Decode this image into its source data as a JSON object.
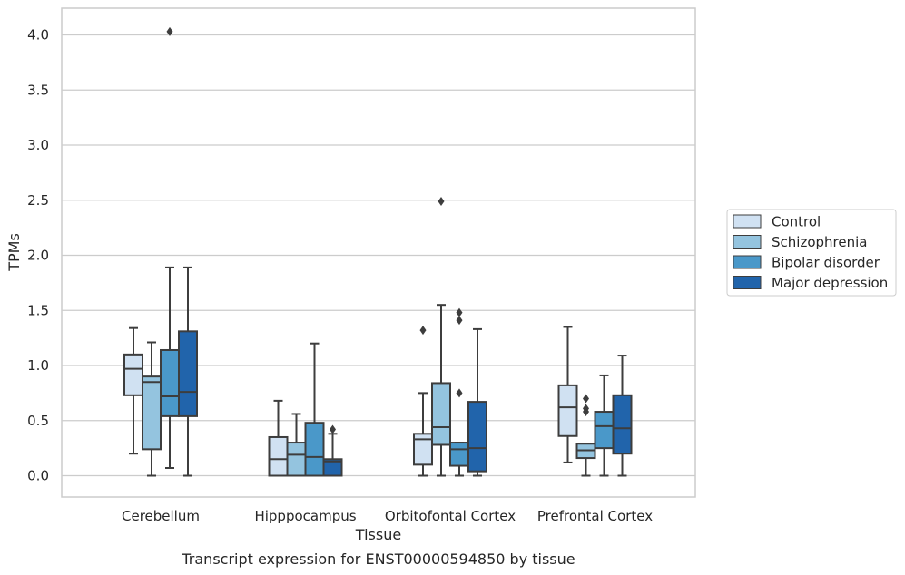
{
  "chart_data": {
    "type": "boxplot",
    "title": "",
    "caption": "Transcript expression for ENST00000594850 by tissue",
    "xlabel": "Tissue",
    "ylabel": "TPMs",
    "ylim": [
      -0.2,
      4.25
    ],
    "yticks": [
      0.0,
      0.5,
      1.0,
      1.5,
      2.0,
      2.5,
      3.0,
      3.5,
      4.0
    ],
    "ytick_labels": [
      "0.0",
      "0.5",
      "1.0",
      "1.5",
      "2.0",
      "2.5",
      "3.0",
      "3.5",
      "4.0"
    ],
    "grid": true,
    "legend_placement": "center-right outside",
    "categories": [
      "Cerebellum",
      "Hipppocampus",
      "Orbitofontal Cortex",
      "Prefrontal Cortex"
    ],
    "series": [
      {
        "name": "Control",
        "color": "#d0e1f2",
        "boxes": [
          {
            "whislo": 0.2,
            "q1": 0.73,
            "med": 0.97,
            "q3": 1.1,
            "whishi": 1.34,
            "fliers": []
          },
          {
            "whislo": 0.0,
            "q1": 0.0,
            "med": 0.15,
            "q3": 0.35,
            "whishi": 0.68,
            "fliers": []
          },
          {
            "whislo": 0.0,
            "q1": 0.1,
            "med": 0.33,
            "q3": 0.38,
            "whishi": 0.75,
            "fliers": [
              1.32
            ]
          },
          {
            "whislo": 0.12,
            "q1": 0.36,
            "med": 0.62,
            "q3": 0.82,
            "whishi": 1.35,
            "fliers": []
          }
        ]
      },
      {
        "name": "Schizophrenia",
        "color": "#94c4df",
        "boxes": [
          {
            "whislo": 0.0,
            "q1": 0.24,
            "med": 0.85,
            "q3": 0.9,
            "whishi": 1.21,
            "fliers": []
          },
          {
            "whislo": 0.0,
            "q1": 0.0,
            "med": 0.19,
            "q3": 0.3,
            "whishi": 0.56,
            "fliers": []
          },
          {
            "whislo": 0.0,
            "q1": 0.28,
            "med": 0.44,
            "q3": 0.84,
            "whishi": 1.55,
            "fliers": [
              2.49
            ]
          },
          {
            "whislo": 0.0,
            "q1": 0.16,
            "med": 0.23,
            "q3": 0.29,
            "whishi": 0.29,
            "fliers": [
              0.58,
              0.61,
              0.7
            ]
          }
        ]
      },
      {
        "name": "Bipolar disorder",
        "color": "#4a98c9",
        "boxes": [
          {
            "whislo": 0.07,
            "q1": 0.54,
            "med": 0.72,
            "q3": 1.14,
            "whishi": 1.89,
            "fliers": [
              4.03
            ]
          },
          {
            "whislo": 0.0,
            "q1": 0.0,
            "med": 0.17,
            "q3": 0.48,
            "whishi": 1.2,
            "fliers": []
          },
          {
            "whislo": 0.0,
            "q1": 0.09,
            "med": 0.24,
            "q3": 0.3,
            "whishi": 0.3,
            "fliers": [
              0.75,
              1.41,
              1.48
            ]
          },
          {
            "whislo": 0.0,
            "q1": 0.25,
            "med": 0.45,
            "q3": 0.58,
            "whishi": 0.91,
            "fliers": []
          }
        ]
      },
      {
        "name": "Major depression",
        "color": "#2164ab",
        "boxes": [
          {
            "whislo": 0.0,
            "q1": 0.54,
            "med": 0.76,
            "q3": 1.31,
            "whishi": 1.89,
            "fliers": []
          },
          {
            "whislo": 0.0,
            "q1": 0.0,
            "med": 0.13,
            "q3": 0.15,
            "whishi": 0.38,
            "fliers": [
              0.42
            ]
          },
          {
            "whislo": 0.0,
            "q1": 0.04,
            "med": 0.25,
            "q3": 0.67,
            "whishi": 1.33,
            "fliers": []
          },
          {
            "whislo": 0.0,
            "q1": 0.2,
            "med": 0.43,
            "q3": 0.73,
            "whishi": 1.09,
            "fliers": []
          }
        ]
      }
    ]
  }
}
